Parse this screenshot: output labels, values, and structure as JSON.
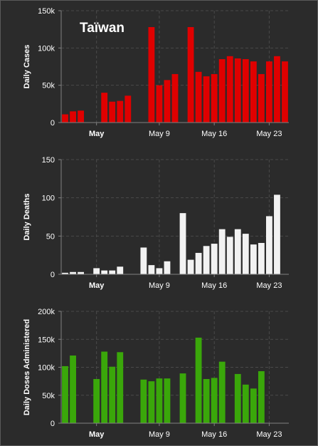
{
  "page_title": "Taïwan",
  "chart_data": [
    {
      "type": "bar",
      "name": "cases",
      "title": "Taïwan",
      "xlabel": "",
      "ylabel": "Daily Cases",
      "color": "#e00000",
      "ylim": [
        0,
        150000
      ],
      "yticks": [
        0,
        50000,
        100000,
        150000
      ],
      "ytick_labels": [
        "0",
        "50k",
        "100k",
        "150k"
      ],
      "xticks": [
        {
          "day": 1,
          "label": "May",
          "bold": true
        },
        {
          "day": 9,
          "label": "May 9",
          "bold": false
        },
        {
          "day": 16,
          "label": "May 16",
          "bold": false
        },
        {
          "day": 23,
          "label": "May 23",
          "bold": false
        }
      ],
      "grid": true,
      "days": [
        -3,
        -2,
        -1,
        0,
        1,
        2,
        3,
        4,
        5,
        6,
        7,
        8,
        9,
        10,
        11,
        12,
        13,
        14,
        15,
        16,
        17,
        18,
        19,
        20,
        21,
        22,
        23,
        24,
        25
      ],
      "values": [
        11000,
        15000,
        16000,
        null,
        null,
        40000,
        28000,
        29000,
        36000,
        null,
        null,
        128000,
        50000,
        57000,
        65000,
        null,
        128000,
        68000,
        62000,
        65000,
        85000,
        89000,
        86000,
        85000,
        82000,
        65000,
        82000,
        89000,
        82000
      ]
    },
    {
      "type": "bar",
      "name": "deaths",
      "title": "",
      "xlabel": "",
      "ylabel": "Daily Deaths",
      "color": "#f2f2f2",
      "ylim": [
        0,
        150
      ],
      "yticks": [
        0,
        50,
        100,
        150
      ],
      "ytick_labels": [
        "0",
        "50",
        "100",
        "150"
      ],
      "xticks": [
        {
          "day": 1,
          "label": "May",
          "bold": true
        },
        {
          "day": 9,
          "label": "May 9",
          "bold": false
        },
        {
          "day": 16,
          "label": "May 16",
          "bold": false
        },
        {
          "day": 23,
          "label": "May 23",
          "bold": false
        }
      ],
      "grid": true,
      "days": [
        -3,
        -2,
        -1,
        0,
        1,
        2,
        3,
        4,
        5,
        6,
        7,
        8,
        9,
        10,
        11,
        12,
        13,
        14,
        15,
        16,
        17,
        18,
        19,
        20,
        21,
        22,
        23,
        24,
        25
      ],
      "values": [
        2,
        3,
        3,
        null,
        8,
        5,
        5,
        10,
        null,
        null,
        35,
        12,
        8,
        17,
        null,
        80,
        19,
        28,
        37,
        40,
        59,
        49,
        59,
        53,
        39,
        41,
        76,
        104,
        null
      ]
    },
    {
      "type": "bar",
      "name": "doses",
      "title": "",
      "xlabel": "",
      "ylabel": "Daily Doses Administered",
      "color": "#3aa70a",
      "ylim": [
        0,
        200000
      ],
      "yticks": [
        0,
        50000,
        100000,
        150000,
        200000
      ],
      "ytick_labels": [
        "0",
        "50k",
        "100k",
        "150k",
        "200k"
      ],
      "xticks": [
        {
          "day": 1,
          "label": "May",
          "bold": true
        },
        {
          "day": 9,
          "label": "May 9",
          "bold": false
        },
        {
          "day": 16,
          "label": "May 16",
          "bold": false
        },
        {
          "day": 23,
          "label": "May 23",
          "bold": false
        }
      ],
      "grid": true,
      "days": [
        -3,
        -2,
        -1,
        0,
        1,
        2,
        3,
        4,
        5,
        6,
        7,
        8,
        9,
        10,
        11,
        12,
        13,
        14,
        15,
        16,
        17,
        18,
        19,
        20,
        21,
        22,
        23,
        24
      ],
      "values": [
        102000,
        121000,
        null,
        null,
        79000,
        128000,
        101000,
        127000,
        null,
        null,
        78000,
        75000,
        80000,
        80000,
        null,
        89000,
        null,
        153000,
        79000,
        81000,
        110000,
        null,
        88000,
        69000,
        62000,
        93000,
        null,
        null
      ]
    }
  ]
}
